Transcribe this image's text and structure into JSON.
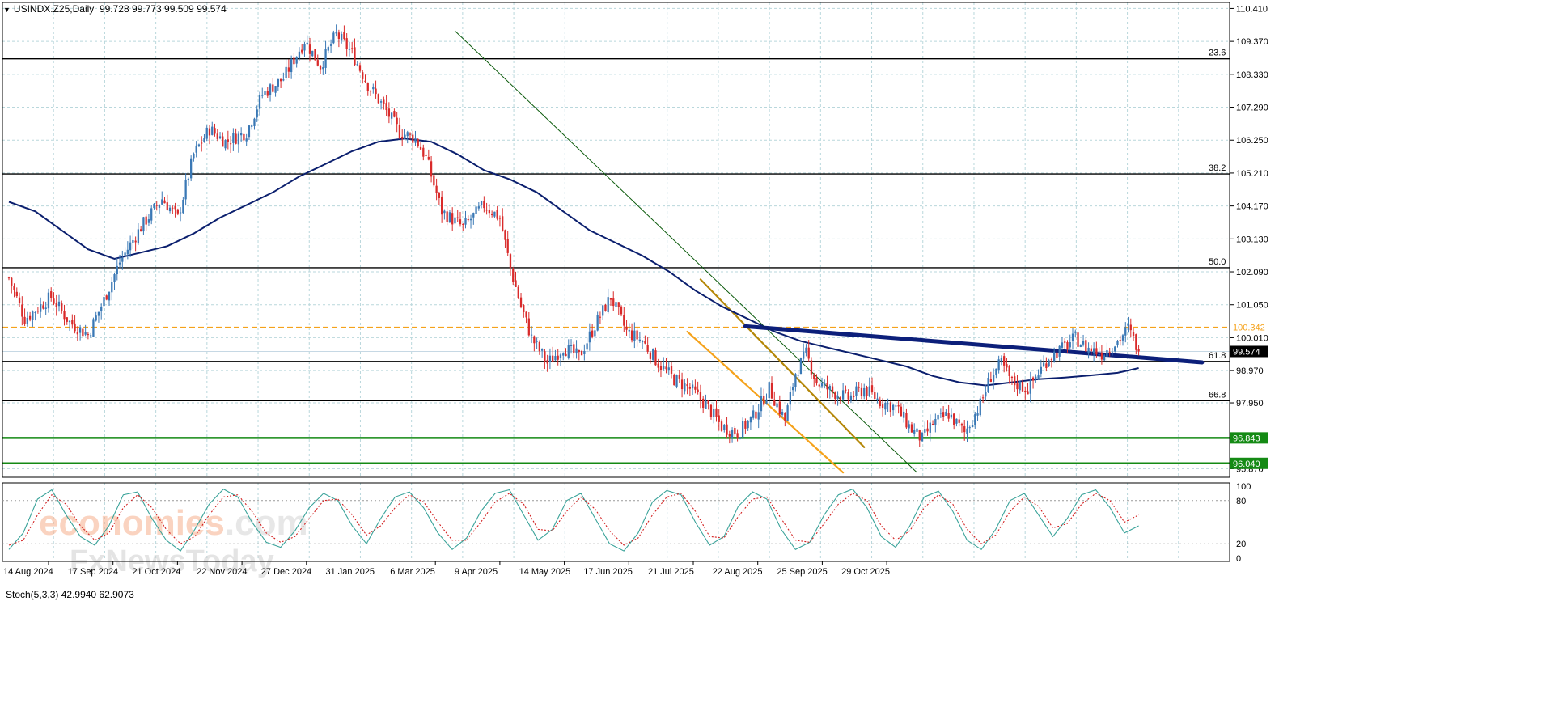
{
  "header": {
    "symbol": "USINDX.Z25,Daily",
    "ohlc": "99.728 99.773 99.509 99.574"
  },
  "watermark": {
    "line1a": "economies",
    "line1b": ".com",
    "line2": "FxNewsToday"
  },
  "colors": {
    "bull": "#3a78b5",
    "bear": "#d92a2a",
    "ma": "#0b1f6e",
    "fib": "#000000",
    "green": "#148a14",
    "orange": "#f5a21b",
    "trendline": "#0c1f7a",
    "grid": "#b9d7dc",
    "stochMain": "#3aa39a",
    "stochSignal": "#d22020"
  },
  "chart_data": [
    {
      "type": "candlestick",
      "title": "USINDX.Z25,Daily",
      "ylim": [
        95.6,
        110.6
      ],
      "price_ticks": [
        "110.410",
        "109.370",
        "108.330",
        "107.290",
        "106.250",
        "105.210",
        "104.170",
        "103.130",
        "102.090",
        "101.050",
        "100.010",
        "98.970",
        "97.950",
        "95.870"
      ],
      "date_ticks": [
        "14 Aug 2024",
        "17 Sep 2024",
        "21 Oct 2024",
        "22 Nov 2024",
        "27 Dec 2024",
        "31 Jan 2025",
        "6 Mar 2025",
        "9 Apr 2025",
        "14 May 2025",
        "17 Jun 2025",
        "21 Jul 2025",
        "22 Aug 2025",
        "25 Sep 2025",
        "29 Oct 2025"
      ],
      "fib_levels": [
        {
          "label": "23.6",
          "value": 108.82
        },
        {
          "label": "38.2",
          "value": 105.18
        },
        {
          "label": "50.0",
          "value": 102.22
        },
        {
          "label": "61.8",
          "value": 99.26
        },
        {
          "label": "66.8",
          "value": 98.02
        }
      ],
      "support_levels": [
        {
          "label": "96.843",
          "value": 96.843
        },
        {
          "label": "96.040",
          "value": 96.04
        }
      ],
      "resistance_dashed": {
        "label": "100.342",
        "value": 100.342
      },
      "last_price": {
        "label": "99.574",
        "value": 99.574
      },
      "close_path": [
        [
          0,
          101.9
        ],
        [
          6,
          100.6
        ],
        [
          16,
          101.3
        ],
        [
          23,
          100.5
        ],
        [
          30,
          100.1
        ],
        [
          36,
          101.2
        ],
        [
          42,
          102.4
        ],
        [
          50,
          103.5
        ],
        [
          58,
          104.4
        ],
        [
          64,
          103.8
        ],
        [
          70,
          105.8
        ],
        [
          76,
          106.6
        ],
        [
          82,
          106.2
        ],
        [
          90,
          106.5
        ],
        [
          96,
          107.7
        ],
        [
          104,
          108.2
        ],
        [
          112,
          109.4
        ],
        [
          118,
          108.6
        ],
        [
          124,
          109.6
        ],
        [
          130,
          109.0
        ],
        [
          136,
          108.0
        ],
        [
          142,
          107.3
        ],
        [
          148,
          106.5
        ],
        [
          154,
          106.3
        ],
        [
          158,
          105.7
        ],
        [
          164,
          104.0
        ],
        [
          172,
          103.5
        ],
        [
          180,
          104.2
        ],
        [
          186,
          103.8
        ],
        [
          190,
          102.2
        ],
        [
          194,
          101.0
        ],
        [
          198,
          100.0
        ],
        [
          204,
          99.2
        ],
        [
          210,
          99.7
        ],
        [
          216,
          99.4
        ],
        [
          222,
          100.4
        ],
        [
          228,
          101.3
        ],
        [
          234,
          100.2
        ],
        [
          240,
          99.9
        ],
        [
          246,
          99.2
        ],
        [
          252,
          98.7
        ],
        [
          258,
          98.4
        ],
        [
          264,
          97.9
        ],
        [
          270,
          97.2
        ],
        [
          276,
          97.0
        ],
        [
          282,
          97.5
        ],
        [
          288,
          98.4
        ],
        [
          294,
          97.4
        ],
        [
          298,
          98.9
        ],
        [
          302,
          99.5
        ],
        [
          306,
          98.6
        ],
        [
          312,
          98.3
        ],
        [
          318,
          98.1
        ],
        [
          324,
          98.4
        ],
        [
          330,
          98.0
        ],
        [
          336,
          97.8
        ],
        [
          342,
          97.1
        ],
        [
          346,
          96.8
        ],
        [
          350,
          97.3
        ],
        [
          356,
          97.6
        ],
        [
          362,
          97.0
        ],
        [
          368,
          97.9
        ],
        [
          372,
          98.8
        ],
        [
          376,
          99.2
        ],
        [
          380,
          98.6
        ],
        [
          386,
          98.4
        ],
        [
          390,
          98.9
        ],
        [
          394,
          99.4
        ],
        [
          398,
          99.6
        ],
        [
          404,
          100.0
        ],
        [
          408,
          99.7
        ],
        [
          414,
          99.5
        ],
        [
          420,
          99.9
        ],
        [
          424,
          100.3
        ],
        [
          428,
          99.6
        ]
      ],
      "ma_path": [
        [
          0,
          104.3
        ],
        [
          10,
          104.0
        ],
        [
          20,
          103.4
        ],
        [
          30,
          102.8
        ],
        [
          40,
          102.5
        ],
        [
          50,
          102.7
        ],
        [
          60,
          102.9
        ],
        [
          70,
          103.3
        ],
        [
          80,
          103.8
        ],
        [
          90,
          104.2
        ],
        [
          100,
          104.6
        ],
        [
          110,
          105.1
        ],
        [
          120,
          105.5
        ],
        [
          130,
          105.9
        ],
        [
          140,
          106.2
        ],
        [
          150,
          106.3
        ],
        [
          160,
          106.2
        ],
        [
          170,
          105.8
        ],
        [
          180,
          105.3
        ],
        [
          190,
          105.0
        ],
        [
          200,
          104.6
        ],
        [
          210,
          104.0
        ],
        [
          220,
          103.4
        ],
        [
          230,
          103.0
        ],
        [
          240,
          102.6
        ],
        [
          250,
          102.1
        ],
        [
          260,
          101.5
        ],
        [
          270,
          101.0
        ],
        [
          280,
          100.6
        ],
        [
          290,
          100.2
        ],
        [
          300,
          99.9
        ],
        [
          310,
          99.7
        ],
        [
          320,
          99.5
        ],
        [
          330,
          99.3
        ],
        [
          340,
          99.1
        ],
        [
          350,
          98.8
        ],
        [
          360,
          98.6
        ],
        [
          370,
          98.5
        ],
        [
          380,
          98.6
        ],
        [
          390,
          98.7
        ],
        [
          400,
          98.75
        ],
        [
          410,
          98.82
        ],
        [
          420,
          98.9
        ],
        [
          428,
          99.05
        ]
      ],
      "trend_lines": [
        {
          "name": "descending",
          "from": [
            169,
            109.7
          ],
          "to": [
            344,
            95.75
          ],
          "color": "#0b5a0b"
        },
        {
          "name": "channel-upper",
          "from": [
            262,
            101.85
          ],
          "to": [
            324,
            96.55
          ],
          "color": "#b48708"
        },
        {
          "name": "channel-lower",
          "from": [
            257,
            100.2
          ],
          "to": [
            316,
            95.75
          ],
          "color": "#f5a21b"
        },
        {
          "name": "neckline",
          "from": [
            279,
            100.37
          ],
          "to": [
            452,
            99.23
          ],
          "color": "#0c1f7a"
        }
      ]
    },
    {
      "type": "line",
      "title": "Stoch(5,3,3)",
      "values_label": "42.9940 62.9073",
      "ylim": [
        0,
        100
      ],
      "y_ticks": [
        "100",
        "80",
        "20",
        "0"
      ],
      "series": [
        {
          "name": "main",
          "values": [
            12,
            35,
            82,
            95,
            60,
            30,
            18,
            45,
            88,
            92,
            55,
            25,
            10,
            40,
            75,
            96,
            85,
            50,
            22,
            15,
            38,
            70,
            90,
            80,
            45,
            20,
            55,
            85,
            92,
            70,
            35,
            12,
            28,
            65,
            90,
            95,
            60,
            25,
            40,
            80,
            90,
            55,
            20,
            10,
            35,
            78,
            94,
            88,
            50,
            18,
            30,
            72,
            92,
            82,
            40,
            12,
            22,
            60,
            88,
            96,
            70,
            30,
            15,
            45,
            85,
            93,
            65,
            25,
            12,
            40,
            80,
            90,
            60,
            30,
            55,
            88,
            95,
            70,
            35,
            45
          ]
        },
        {
          "name": "signal",
          "values": [
            18,
            25,
            60,
            88,
            75,
            45,
            25,
            35,
            70,
            88,
            70,
            40,
            20,
            30,
            60,
            85,
            88,
            65,
            35,
            22,
            30,
            55,
            80,
            82,
            60,
            32,
            45,
            70,
            88,
            78,
            50,
            25,
            25,
            50,
            78,
            90,
            75,
            40,
            38,
            65,
            85,
            68,
            38,
            18,
            28,
            60,
            85,
            90,
            65,
            30,
            28,
            58,
            82,
            85,
            55,
            25,
            22,
            48,
            75,
            90,
            80,
            45,
            25,
            38,
            70,
            88,
            75,
            40,
            20,
            32,
            65,
            85,
            72,
            42,
            48,
            75,
            90,
            80,
            50,
            60
          ]
        }
      ]
    }
  ]
}
